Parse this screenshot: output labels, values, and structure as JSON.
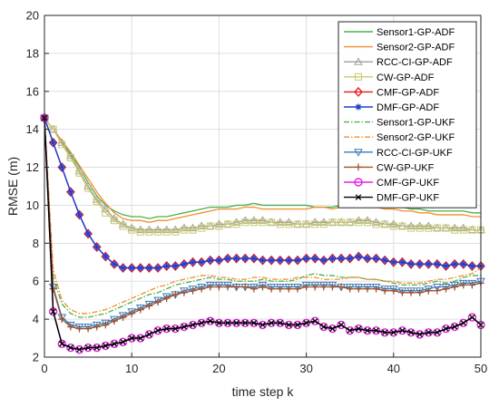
{
  "chart_data": {
    "type": "line",
    "xlabel": "time step k",
    "ylabel": "RMSE (m)",
    "xlim": [
      0,
      50
    ],
    "ylim": [
      2,
      20
    ],
    "xticks": [
      0,
      10,
      20,
      30,
      40,
      50
    ],
    "yticks": [
      2,
      4,
      6,
      8,
      10,
      12,
      14,
      16,
      18,
      20
    ],
    "grid": true,
    "legend_position": "top-right",
    "x": [
      0,
      1,
      2,
      3,
      4,
      5,
      6,
      7,
      8,
      9,
      10,
      11,
      12,
      13,
      14,
      15,
      16,
      17,
      18,
      19,
      20,
      21,
      22,
      23,
      24,
      25,
      26,
      27,
      28,
      29,
      30,
      31,
      32,
      33,
      34,
      35,
      36,
      37,
      38,
      39,
      40,
      41,
      42,
      43,
      44,
      45,
      46,
      47,
      48,
      49,
      50
    ],
    "series": [
      {
        "name": "Sensor1-GP-ADF",
        "color": "#4daf4a",
        "dash": "solid",
        "marker": "none",
        "values": [
          14.6,
          14.0,
          13.3,
          12.7,
          12.0,
          11.2,
          10.5,
          10.0,
          9.7,
          9.5,
          9.4,
          9.4,
          9.3,
          9.4,
          9.4,
          9.5,
          9.6,
          9.7,
          9.8,
          9.9,
          9.9,
          9.9,
          10.0,
          10.0,
          10.1,
          10.0,
          10.0,
          10.0,
          10.0,
          10.0,
          10.0,
          9.9,
          9.9,
          9.9,
          10.0,
          10.0,
          10.0,
          10.0,
          10.0,
          9.9,
          9.9,
          9.9,
          9.8,
          9.8,
          9.7,
          9.7,
          9.7,
          9.7,
          9.7,
          9.6,
          9.6
        ]
      },
      {
        "name": "Sensor2-GP-ADF",
        "color": "#f28e2b",
        "dash": "solid",
        "marker": "none",
        "values": [
          14.6,
          14.0,
          13.4,
          12.8,
          12.1,
          11.4,
          10.7,
          10.1,
          9.6,
          9.3,
          9.2,
          9.2,
          9.1,
          9.2,
          9.2,
          9.3,
          9.4,
          9.5,
          9.6,
          9.7,
          9.8,
          9.8,
          9.8,
          9.9,
          9.9,
          9.8,
          9.8,
          9.8,
          9.8,
          9.8,
          9.8,
          9.9,
          9.9,
          9.8,
          9.9,
          9.9,
          10.0,
          10.0,
          9.9,
          9.8,
          9.8,
          9.7,
          9.7,
          9.6,
          9.6,
          9.5,
          9.5,
          9.5,
          9.5,
          9.4,
          9.4
        ]
      },
      {
        "name": "RCC-CI-GP-ADF",
        "color": "#9e9e9e",
        "dash": "solid",
        "marker": "triangle-up",
        "values": [
          14.6,
          14.0,
          13.3,
          12.6,
          11.8,
          11.0,
          10.3,
          9.8,
          9.3,
          9.0,
          8.8,
          8.7,
          8.7,
          8.7,
          8.7,
          8.7,
          8.8,
          8.8,
          8.9,
          8.9,
          9.0,
          9.0,
          9.1,
          9.2,
          9.2,
          9.2,
          9.1,
          9.1,
          9.1,
          9.0,
          9.0,
          9.1,
          9.1,
          9.1,
          9.1,
          9.1,
          9.2,
          9.2,
          9.1,
          9.0,
          9.0,
          8.9,
          8.9,
          8.9,
          8.9,
          8.8,
          8.8,
          8.8,
          8.8,
          8.7,
          8.7
        ]
      },
      {
        "name": "CW-GP-ADF",
        "color": "#c8c86e",
        "dash": "solid",
        "marker": "square",
        "values": [
          14.6,
          14.0,
          13.2,
          12.5,
          11.7,
          10.9,
          10.2,
          9.6,
          9.2,
          8.9,
          8.7,
          8.6,
          8.6,
          8.6,
          8.6,
          8.6,
          8.7,
          8.7,
          8.8,
          8.9,
          8.9,
          9.0,
          9.0,
          9.1,
          9.1,
          9.1,
          9.1,
          9.0,
          9.0,
          9.0,
          9.0,
          9.0,
          9.0,
          9.1,
          9.1,
          9.1,
          9.1,
          9.1,
          9.0,
          9.0,
          8.9,
          8.9,
          8.8,
          8.8,
          8.8,
          8.8,
          8.8,
          8.7,
          8.7,
          8.7,
          8.7
        ]
      },
      {
        "name": "CMF-GP-ADF",
        "color": "#e41a1c",
        "dash": "solid",
        "marker": "diamond",
        "values": [
          14.6,
          13.3,
          12.0,
          10.7,
          9.5,
          8.5,
          7.8,
          7.3,
          6.9,
          6.7,
          6.7,
          6.7,
          6.7,
          6.7,
          6.8,
          6.8,
          6.9,
          7.0,
          7.0,
          7.1,
          7.1,
          7.2,
          7.2,
          7.2,
          7.2,
          7.1,
          7.1,
          7.1,
          7.1,
          7.1,
          7.2,
          7.2,
          7.1,
          7.2,
          7.2,
          7.2,
          7.3,
          7.2,
          7.2,
          7.1,
          7.0,
          7.0,
          6.9,
          6.9,
          6.9,
          6.9,
          6.8,
          6.9,
          6.9,
          6.8,
          6.8
        ]
      },
      {
        "name": "DMF-GP-ADF",
        "color": "#1f3fd1",
        "dash": "solid",
        "marker": "star",
        "values": [
          14.6,
          13.3,
          12.0,
          10.7,
          9.5,
          8.5,
          7.8,
          7.3,
          6.9,
          6.7,
          6.7,
          6.7,
          6.7,
          6.7,
          6.8,
          6.8,
          6.9,
          7.0,
          7.0,
          7.1,
          7.1,
          7.2,
          7.2,
          7.2,
          7.2,
          7.1,
          7.1,
          7.1,
          7.1,
          7.1,
          7.2,
          7.2,
          7.1,
          7.2,
          7.2,
          7.2,
          7.3,
          7.2,
          7.2,
          7.1,
          7.0,
          7.0,
          6.9,
          6.9,
          6.9,
          6.9,
          6.8,
          6.9,
          6.9,
          6.8,
          6.8
        ]
      },
      {
        "name": "Sensor1-GP-UKF",
        "color": "#4daf4a",
        "dash": "dashdot",
        "marker": "none",
        "values": [
          14.6,
          6.2,
          4.8,
          4.3,
          4.1,
          4.1,
          4.2,
          4.3,
          4.5,
          4.7,
          4.9,
          5.1,
          5.3,
          5.4,
          5.6,
          5.8,
          5.9,
          6.0,
          6.1,
          6.2,
          6.1,
          6.1,
          6.0,
          6.0,
          6.0,
          6.1,
          6.0,
          6.0,
          6.0,
          6.1,
          6.3,
          6.4,
          6.3,
          6.3,
          6.2,
          6.2,
          6.2,
          6.1,
          6.1,
          6.0,
          5.9,
          5.8,
          5.8,
          5.8,
          5.9,
          6.0,
          5.9,
          6.0,
          6.2,
          6.3,
          6.3
        ]
      },
      {
        "name": "Sensor2-GP-UKF",
        "color": "#f28e2b",
        "dash": "dashdot",
        "marker": "none",
        "values": [
          14.6,
          6.6,
          5.0,
          4.5,
          4.3,
          4.3,
          4.4,
          4.5,
          4.7,
          4.9,
          5.1,
          5.3,
          5.5,
          5.7,
          5.8,
          6.0,
          6.1,
          6.2,
          6.3,
          6.3,
          6.2,
          6.2,
          6.1,
          6.1,
          6.2,
          6.2,
          6.1,
          6.1,
          6.1,
          6.2,
          6.2,
          6.2,
          6.1,
          6.1,
          6.1,
          6.2,
          6.2,
          6.1,
          6.1,
          6.0,
          6.0,
          5.9,
          5.9,
          5.9,
          6.0,
          6.1,
          6.1,
          6.2,
          6.3,
          6.4,
          6.7
        ]
      },
      {
        "name": "RCC-CI-GP-UKF",
        "color": "#3a7ab8",
        "dash": "solid",
        "marker": "triangle-down",
        "values": [
          14.6,
          5.7,
          4.1,
          3.7,
          3.6,
          3.6,
          3.7,
          3.8,
          4.0,
          4.2,
          4.4,
          4.6,
          4.8,
          5.0,
          5.2,
          5.3,
          5.5,
          5.6,
          5.7,
          5.8,
          5.8,
          5.8,
          5.7,
          5.7,
          5.7,
          5.8,
          5.7,
          5.7,
          5.7,
          5.7,
          5.8,
          5.8,
          5.8,
          5.8,
          5.7,
          5.7,
          5.7,
          5.7,
          5.7,
          5.6,
          5.6,
          5.5,
          5.5,
          5.5,
          5.6,
          5.7,
          5.7,
          5.8,
          5.9,
          5.9,
          6.0
        ]
      },
      {
        "name": "CW-GP-UKF",
        "color": "#a0522d",
        "dash": "solid",
        "marker": "plus",
        "values": [
          14.6,
          5.6,
          4.0,
          3.6,
          3.5,
          3.5,
          3.6,
          3.7,
          3.9,
          4.1,
          4.3,
          4.5,
          4.7,
          4.9,
          5.1,
          5.3,
          5.4,
          5.5,
          5.6,
          5.7,
          5.7,
          5.7,
          5.7,
          5.7,
          5.6,
          5.7,
          5.6,
          5.6,
          5.6,
          5.6,
          5.7,
          5.7,
          5.7,
          5.7,
          5.7,
          5.6,
          5.6,
          5.6,
          5.6,
          5.5,
          5.5,
          5.4,
          5.4,
          5.4,
          5.5,
          5.5,
          5.6,
          5.7,
          5.8,
          5.8,
          5.9
        ]
      },
      {
        "name": "CMF-GP-UKF",
        "color": "#e020e0",
        "dash": "solid",
        "marker": "circle",
        "values": [
          14.6,
          4.4,
          2.7,
          2.5,
          2.4,
          2.5,
          2.5,
          2.6,
          2.7,
          2.8,
          3.0,
          3.0,
          3.2,
          3.4,
          3.5,
          3.5,
          3.6,
          3.7,
          3.8,
          3.9,
          3.8,
          3.8,
          3.8,
          3.8,
          3.8,
          3.7,
          3.8,
          3.8,
          3.7,
          3.7,
          3.8,
          3.9,
          3.6,
          3.5,
          3.7,
          3.4,
          3.5,
          3.4,
          3.4,
          3.3,
          3.3,
          3.4,
          3.3,
          3.2,
          3.3,
          3.3,
          3.5,
          3.6,
          3.8,
          4.1,
          3.7
        ]
      },
      {
        "name": "DMF-GP-UKF",
        "color": "#000000",
        "dash": "solid",
        "marker": "x",
        "values": [
          14.6,
          4.4,
          2.7,
          2.5,
          2.4,
          2.5,
          2.5,
          2.6,
          2.7,
          2.8,
          3.0,
          3.0,
          3.2,
          3.4,
          3.5,
          3.5,
          3.6,
          3.7,
          3.8,
          3.9,
          3.8,
          3.8,
          3.8,
          3.8,
          3.8,
          3.7,
          3.8,
          3.8,
          3.7,
          3.7,
          3.8,
          3.9,
          3.6,
          3.5,
          3.7,
          3.4,
          3.5,
          3.4,
          3.4,
          3.3,
          3.3,
          3.4,
          3.3,
          3.2,
          3.3,
          3.3,
          3.5,
          3.6,
          3.8,
          4.1,
          3.7
        ]
      }
    ]
  }
}
